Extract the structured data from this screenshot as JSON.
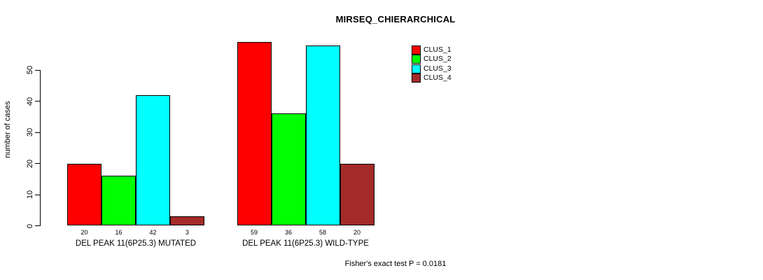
{
  "chart_data": {
    "type": "bar",
    "title": "MIRSEQ_CHIERARCHICAL",
    "ylabel": "number of cases",
    "categories": [
      "DEL PEAK 11(6P25.3) MUTATED",
      "DEL PEAK 11(6P25.3) WILD-TYPE"
    ],
    "series": [
      {
        "name": "CLUS_1",
        "color": "#FF0000",
        "values": [
          20,
          59
        ]
      },
      {
        "name": "CLUS_2",
        "color": "#00FF00",
        "values": [
          16,
          36
        ]
      },
      {
        "name": "CLUS_3",
        "color": "#00FFFF",
        "values": [
          42,
          58
        ]
      },
      {
        "name": "CLUS_4",
        "color": "#A52A2A",
        "values": [
          3,
          20
        ]
      }
    ],
    "yticks": [
      0,
      10,
      20,
      30,
      40,
      50
    ],
    "ylim": [
      0,
      59
    ],
    "grid": false,
    "bar_value_labels": true,
    "legend_position": "top-right",
    "legend_labels": [
      "CLUS_1",
      "CLUS_2",
      "CLUS_3",
      "CLUS_4"
    ],
    "annotation": "Fisher's exact test P = 0.0181",
    "bar_border_color": "#000000",
    "axis_color": "#000000",
    "background_color": "#FFFFFF"
  }
}
